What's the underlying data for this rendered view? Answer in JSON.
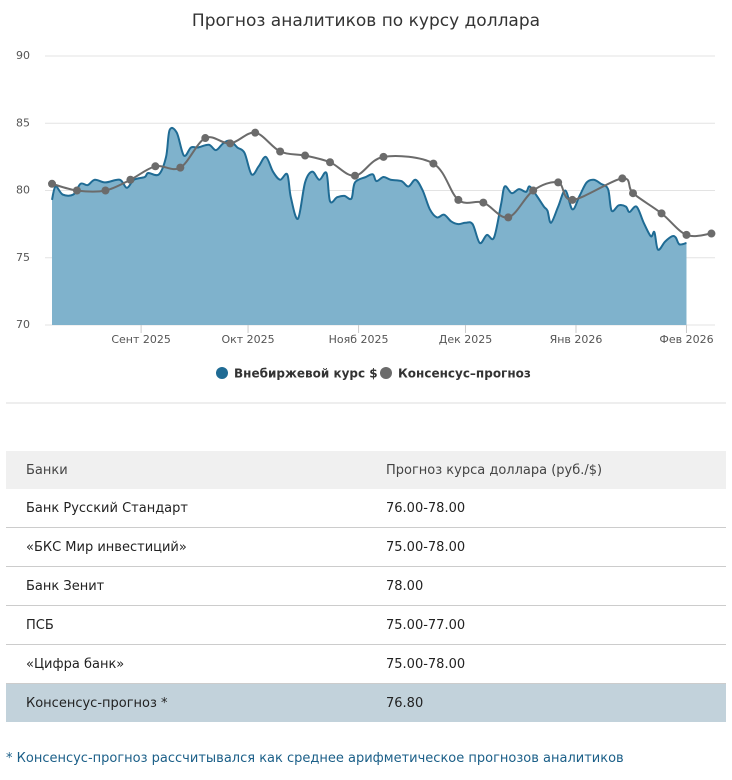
{
  "chart_data": {
    "type": "area",
    "title": "Прогноз аналитиков по курсу доллара",
    "xlim": [
      -25,
      161
    ],
    "xticks": [
      {
        "value": 0,
        "label": "Сент 2025"
      },
      {
        "value": 30,
        "label": "Окт 2025"
      },
      {
        "value": 61,
        "label": "Нояб 2025"
      },
      {
        "value": 91,
        "label": "Дек 2025"
      },
      {
        "value": 122,
        "label": "Янв 2026"
      },
      {
        "value": 153,
        "label": "Фев 2026"
      }
    ],
    "ylim": [
      70,
      90
    ],
    "yticks": [
      70,
      75,
      80,
      85,
      90
    ],
    "grid": true,
    "series": [
      {
        "name": "Внебиржевой курс $",
        "color": "#1f6b94",
        "fill": "#7fb2cc",
        "x": [
          -25,
          -24,
          -22,
          -19,
          -17,
          -15,
          -13,
          -10,
          -6,
          -4,
          -2,
          1,
          2,
          5,
          7,
          8,
          10,
          12,
          14,
          16,
          19,
          21,
          23,
          25,
          27,
          29,
          31,
          33,
          35,
          37,
          39,
          41,
          42,
          44,
          46,
          48,
          50,
          52,
          53,
          55,
          57,
          59,
          60,
          63,
          65,
          66,
          68,
          70,
          73,
          75,
          77,
          79,
          81,
          83,
          85,
          87,
          89,
          91,
          93,
          95,
          97,
          99,
          101,
          102,
          104,
          106,
          108,
          109,
          111,
          113,
          114,
          115,
          117,
          119,
          121,
          123,
          125,
          127,
          129,
          131,
          132,
          134,
          136,
          137,
          139,
          141,
          143,
          144,
          145,
          147,
          149,
          150,
          151,
          153
        ],
        "values": [
          79.3,
          80.3,
          79.7,
          79.7,
          80.5,
          80.4,
          80.8,
          80.6,
          80.8,
          80.2,
          80.8,
          81.0,
          81.3,
          81.2,
          82.5,
          84.5,
          84.3,
          82.6,
          83.2,
          83.2,
          83.4,
          83.0,
          83.5,
          83.7,
          83.2,
          82.8,
          81.2,
          81.8,
          82.5,
          81.4,
          80.8,
          81.2,
          79.5,
          77.9,
          80.6,
          81.4,
          80.8,
          81.3,
          79.2,
          79.5,
          79.6,
          79.4,
          80.6,
          81.0,
          81.2,
          80.7,
          81.0,
          80.8,
          80.7,
          80.3,
          80.8,
          80.0,
          78.6,
          78.0,
          78.2,
          77.7,
          77.5,
          77.6,
          77.5,
          76.1,
          76.7,
          76.5,
          79.0,
          80.3,
          79.8,
          80.1,
          79.9,
          80.3,
          79.6,
          78.8,
          78.5,
          77.6,
          78.8,
          80.0,
          78.6,
          79.6,
          80.6,
          80.8,
          80.5,
          80.1,
          78.5,
          78.9,
          78.8,
          78.4,
          78.8,
          77.6,
          76.6,
          76.9,
          75.6,
          76.2,
          76.6,
          76.5,
          76.0,
          76.1
        ]
      },
      {
        "name": "Консенсус–прогноз",
        "color": "#6b6b6b",
        "x": [
          -25,
          -18,
          -10,
          -3,
          4,
          11,
          18,
          25,
          32,
          39,
          46,
          53,
          60,
          68,
          82,
          89,
          96,
          103,
          110,
          117,
          121,
          135,
          138,
          146,
          153,
          160
        ],
        "values": [
          80.5,
          80.0,
          80.0,
          80.8,
          81.8,
          81.7,
          83.9,
          83.5,
          84.3,
          82.9,
          82.6,
          82.1,
          81.1,
          82.5,
          82.0,
          79.3,
          79.1,
          78.0,
          80.0,
          80.6,
          79.3,
          80.9,
          79.8,
          78.3,
          76.7,
          76.8
        ]
      }
    ]
  },
  "table": {
    "headers": [
      "Банки",
      "Прогноз курса доллара (руб./$)"
    ],
    "rows": [
      [
        "Банк Русский Стандарт",
        "76.00-78.00"
      ],
      [
        "«БКС Мир инвестиций»",
        "75.00-78.00"
      ],
      [
        "Банк Зенит",
        "78.00"
      ],
      [
        "ПСБ",
        "75.00-77.00"
      ],
      [
        "«Цифра банк»",
        "75.00-78.00"
      ],
      [
        "Консенсус-прогноз *",
        "76.80"
      ]
    ]
  },
  "footnote": "* Консенсус-прогноз рассчитывался как среднее арифметическое прогнозов аналитиков"
}
